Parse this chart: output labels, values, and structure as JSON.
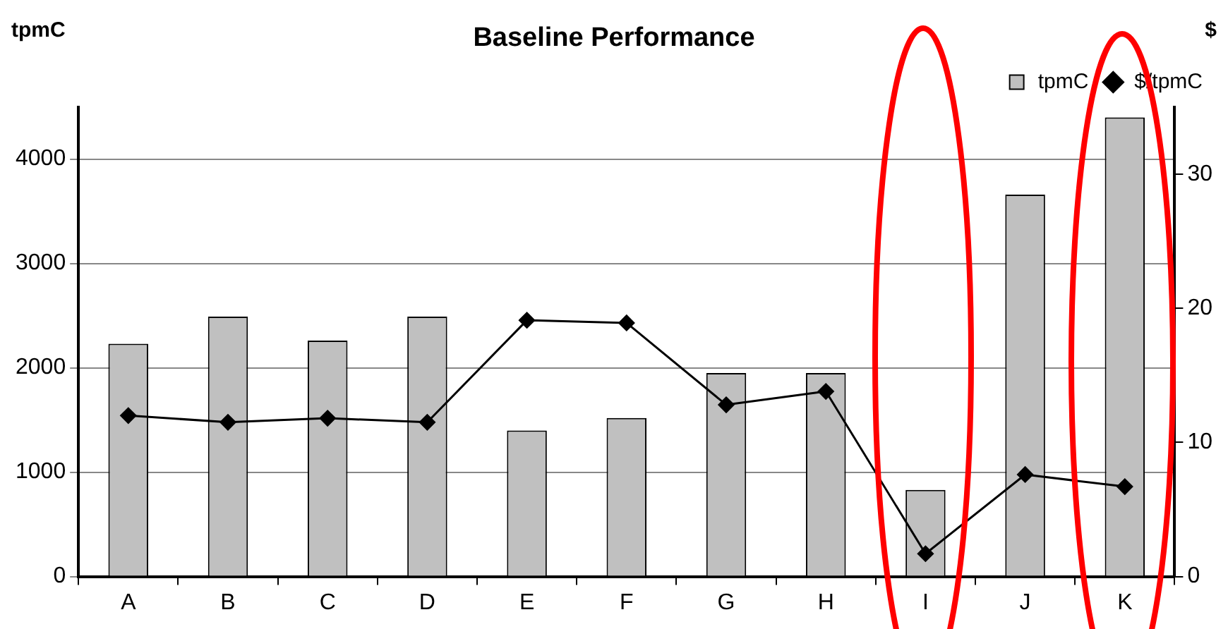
{
  "chart_data": {
    "type": "bar",
    "title": "Baseline Performance",
    "ylabel": "tpmC",
    "y2label": "$",
    "categories": [
      "A",
      "B",
      "C",
      "D",
      "E",
      "F",
      "G",
      "H",
      "I",
      "J",
      "K"
    ],
    "series": [
      {
        "name": "tpmC",
        "color": "#c0c0c0",
        "values": [
          2230,
          2490,
          2260,
          2490,
          1400,
          1520,
          1950,
          1950,
          830,
          3660,
          4400
        ]
      },
      {
        "name": "$/tpmC",
        "type": "line",
        "axis": "y2",
        "color": "#000000",
        "marker": "diamond",
        "values": [
          12.0,
          11.5,
          11.8,
          11.5,
          19.1,
          18.9,
          12.8,
          13.8,
          1.7,
          7.6,
          6.7
        ]
      }
    ],
    "ylim": [
      0,
      4500
    ],
    "yticks": [
      0,
      1000,
      2000,
      3000,
      4000
    ],
    "y2lim": [
      0,
      35
    ],
    "y2ticks": [
      0,
      10,
      20,
      30
    ],
    "grid": "y",
    "legend": "top right"
  }
}
